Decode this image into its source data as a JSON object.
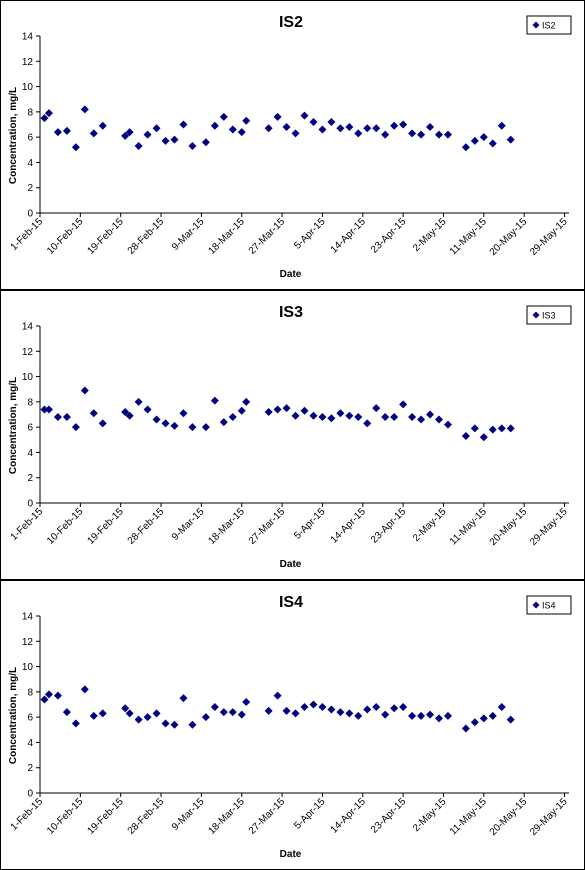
{
  "chart_data": [
    {
      "type": "scatter",
      "title": "IS2",
      "xlabel": "Date",
      "ylabel": "Concentration, mg/L",
      "ylim": [
        0,
        14
      ],
      "yticks": [
        0,
        2,
        4,
        6,
        8,
        10,
        12,
        14
      ],
      "xlim": [
        "2015-02-01",
        "2015-05-30"
      ],
      "xtick_labels": [
        "1-Feb-15",
        "10-Feb-15",
        "19-Feb-15",
        "28-Feb-15",
        "9-Mar-15",
        "18-Mar-15",
        "27-Mar-15",
        "5-Apr-15",
        "14-Apr-15",
        "23-Apr-15",
        "2-May-15",
        "11-May-15",
        "20-May-15",
        "29-May-15"
      ],
      "grid": false,
      "legend_position": "top-right",
      "marker_color": "#000080",
      "series": [
        {
          "name": "IS2",
          "points": [
            [
              "2015-02-02",
              7.5
            ],
            [
              "2015-02-03",
              7.9
            ],
            [
              "2015-02-05",
              6.4
            ],
            [
              "2015-02-07",
              6.5
            ],
            [
              "2015-02-09",
              5.2
            ],
            [
              "2015-02-11",
              8.2
            ],
            [
              "2015-02-13",
              6.3
            ],
            [
              "2015-02-15",
              6.9
            ],
            [
              "2015-02-20",
              6.1
            ],
            [
              "2015-02-21",
              6.4
            ],
            [
              "2015-02-23",
              5.3
            ],
            [
              "2015-02-25",
              6.2
            ],
            [
              "2015-02-27",
              6.7
            ],
            [
              "2015-03-01",
              5.7
            ],
            [
              "2015-03-03",
              5.8
            ],
            [
              "2015-03-05",
              7.0
            ],
            [
              "2015-03-07",
              5.3
            ],
            [
              "2015-03-10",
              5.6
            ],
            [
              "2015-03-12",
              6.9
            ],
            [
              "2015-03-14",
              7.6
            ],
            [
              "2015-03-16",
              6.6
            ],
            [
              "2015-03-18",
              6.4
            ],
            [
              "2015-03-19",
              7.3
            ],
            [
              "2015-03-24",
              6.7
            ],
            [
              "2015-03-26",
              7.6
            ],
            [
              "2015-03-28",
              6.8
            ],
            [
              "2015-03-30",
              6.3
            ],
            [
              "2015-04-01",
              7.7
            ],
            [
              "2015-04-03",
              7.2
            ],
            [
              "2015-04-05",
              6.6
            ],
            [
              "2015-04-07",
              7.2
            ],
            [
              "2015-04-09",
              6.7
            ],
            [
              "2015-04-11",
              6.8
            ],
            [
              "2015-04-13",
              6.3
            ],
            [
              "2015-04-15",
              6.7
            ],
            [
              "2015-04-17",
              6.7
            ],
            [
              "2015-04-19",
              6.2
            ],
            [
              "2015-04-21",
              6.9
            ],
            [
              "2015-04-23",
              7.0
            ],
            [
              "2015-04-25",
              6.3
            ],
            [
              "2015-04-27",
              6.2
            ],
            [
              "2015-04-29",
              6.8
            ],
            [
              "2015-05-01",
              6.2
            ],
            [
              "2015-05-03",
              6.2
            ],
            [
              "2015-05-07",
              5.2
            ],
            [
              "2015-05-09",
              5.7
            ],
            [
              "2015-05-11",
              6.0
            ],
            [
              "2015-05-13",
              5.5
            ],
            [
              "2015-05-15",
              6.9
            ],
            [
              "2015-05-17",
              5.8
            ]
          ]
        }
      ]
    },
    {
      "type": "scatter",
      "title": "IS3",
      "xlabel": "Date",
      "ylabel": "Concentration, mg/L",
      "ylim": [
        0,
        14
      ],
      "yticks": [
        0,
        2,
        4,
        6,
        8,
        10,
        12,
        14
      ],
      "xlim": [
        "2015-02-01",
        "2015-05-30"
      ],
      "xtick_labels": [
        "1-Feb-15",
        "10-Feb-15",
        "19-Feb-15",
        "28-Feb-15",
        "9-Mar-15",
        "18-Mar-15",
        "27-Mar-15",
        "5-Apr-15",
        "14-Apr-15",
        "23-Apr-15",
        "2-May-15",
        "11-May-15",
        "20-May-15",
        "29-May-15"
      ],
      "grid": false,
      "legend_position": "top-right",
      "marker_color": "#000080",
      "series": [
        {
          "name": "IS3",
          "points": [
            [
              "2015-02-02",
              7.4
            ],
            [
              "2015-02-03",
              7.4
            ],
            [
              "2015-02-05",
              6.8
            ],
            [
              "2015-02-07",
              6.8
            ],
            [
              "2015-02-09",
              6.0
            ],
            [
              "2015-02-11",
              8.9
            ],
            [
              "2015-02-13",
              7.1
            ],
            [
              "2015-02-15",
              6.3
            ],
            [
              "2015-02-20",
              7.2
            ],
            [
              "2015-02-21",
              6.9
            ],
            [
              "2015-02-23",
              8.0
            ],
            [
              "2015-02-25",
              7.4
            ],
            [
              "2015-02-27",
              6.6
            ],
            [
              "2015-03-01",
              6.3
            ],
            [
              "2015-03-03",
              6.1
            ],
            [
              "2015-03-05",
              7.1
            ],
            [
              "2015-03-07",
              6.0
            ],
            [
              "2015-03-10",
              6.0
            ],
            [
              "2015-03-12",
              8.1
            ],
            [
              "2015-03-14",
              6.4
            ],
            [
              "2015-03-16",
              6.8
            ],
            [
              "2015-03-18",
              7.3
            ],
            [
              "2015-03-19",
              8.0
            ],
            [
              "2015-03-24",
              7.2
            ],
            [
              "2015-03-26",
              7.4
            ],
            [
              "2015-03-28",
              7.5
            ],
            [
              "2015-03-30",
              6.9
            ],
            [
              "2015-04-01",
              7.3
            ],
            [
              "2015-04-03",
              6.9
            ],
            [
              "2015-04-05",
              6.8
            ],
            [
              "2015-04-07",
              6.7
            ],
            [
              "2015-04-09",
              7.1
            ],
            [
              "2015-04-11",
              6.9
            ],
            [
              "2015-04-13",
              6.8
            ],
            [
              "2015-04-15",
              6.3
            ],
            [
              "2015-04-17",
              7.5
            ],
            [
              "2015-04-19",
              6.8
            ],
            [
              "2015-04-21",
              6.8
            ],
            [
              "2015-04-23",
              7.8
            ],
            [
              "2015-04-25",
              6.8
            ],
            [
              "2015-04-27",
              6.6
            ],
            [
              "2015-04-29",
              7.0
            ],
            [
              "2015-05-01",
              6.6
            ],
            [
              "2015-05-03",
              6.2
            ],
            [
              "2015-05-07",
              5.3
            ],
            [
              "2015-05-09",
              5.9
            ],
            [
              "2015-05-11",
              5.2
            ],
            [
              "2015-05-13",
              5.8
            ],
            [
              "2015-05-15",
              5.9
            ],
            [
              "2015-05-17",
              5.9
            ]
          ]
        }
      ]
    },
    {
      "type": "scatter",
      "title": "IS4",
      "xlabel": "Date",
      "ylabel": "Concentration, mg/L",
      "ylim": [
        0,
        14
      ],
      "yticks": [
        0,
        2,
        4,
        6,
        8,
        10,
        12,
        14
      ],
      "xlim": [
        "2015-02-01",
        "2015-05-30"
      ],
      "xtick_labels": [
        "1-Feb-15",
        "10-Feb-15",
        "19-Feb-15",
        "28-Feb-15",
        "9-Mar-15",
        "18-Mar-15",
        "27-Mar-15",
        "5-Apr-15",
        "14-Apr-15",
        "23-Apr-15",
        "2-May-15",
        "11-May-15",
        "20-May-15",
        "29-May-15"
      ],
      "grid": false,
      "legend_position": "top-right",
      "marker_color": "#000080",
      "series": [
        {
          "name": "IS4",
          "points": [
            [
              "2015-02-02",
              7.4
            ],
            [
              "2015-02-03",
              7.8
            ],
            [
              "2015-02-05",
              7.7
            ],
            [
              "2015-02-07",
              6.4
            ],
            [
              "2015-02-09",
              5.5
            ],
            [
              "2015-02-11",
              8.2
            ],
            [
              "2015-02-13",
              6.1
            ],
            [
              "2015-02-15",
              6.3
            ],
            [
              "2015-02-20",
              6.7
            ],
            [
              "2015-02-21",
              6.3
            ],
            [
              "2015-02-23",
              5.8
            ],
            [
              "2015-02-25",
              6.0
            ],
            [
              "2015-02-27",
              6.3
            ],
            [
              "2015-03-01",
              5.5
            ],
            [
              "2015-03-03",
              5.4
            ],
            [
              "2015-03-05",
              7.5
            ],
            [
              "2015-03-07",
              5.4
            ],
            [
              "2015-03-10",
              6.0
            ],
            [
              "2015-03-12",
              6.8
            ],
            [
              "2015-03-14",
              6.4
            ],
            [
              "2015-03-16",
              6.4
            ],
            [
              "2015-03-18",
              6.2
            ],
            [
              "2015-03-19",
              7.2
            ],
            [
              "2015-03-24",
              6.5
            ],
            [
              "2015-03-26",
              7.7
            ],
            [
              "2015-03-28",
              6.5
            ],
            [
              "2015-03-30",
              6.3
            ],
            [
              "2015-04-01",
              6.8
            ],
            [
              "2015-04-03",
              7.0
            ],
            [
              "2015-04-05",
              6.8
            ],
            [
              "2015-04-07",
              6.6
            ],
            [
              "2015-04-09",
              6.4
            ],
            [
              "2015-04-11",
              6.3
            ],
            [
              "2015-04-13",
              6.1
            ],
            [
              "2015-04-15",
              6.6
            ],
            [
              "2015-04-17",
              6.8
            ],
            [
              "2015-04-19",
              6.2
            ],
            [
              "2015-04-21",
              6.7
            ],
            [
              "2015-04-23",
              6.8
            ],
            [
              "2015-04-25",
              6.1
            ],
            [
              "2015-04-27",
              6.1
            ],
            [
              "2015-04-29",
              6.2
            ],
            [
              "2015-05-01",
              5.9
            ],
            [
              "2015-05-03",
              6.1
            ],
            [
              "2015-05-07",
              5.1
            ],
            [
              "2015-05-09",
              5.6
            ],
            [
              "2015-05-11",
              5.9
            ],
            [
              "2015-05-13",
              6.1
            ],
            [
              "2015-05-15",
              6.8
            ],
            [
              "2015-05-17",
              5.8
            ]
          ]
        }
      ]
    }
  ]
}
